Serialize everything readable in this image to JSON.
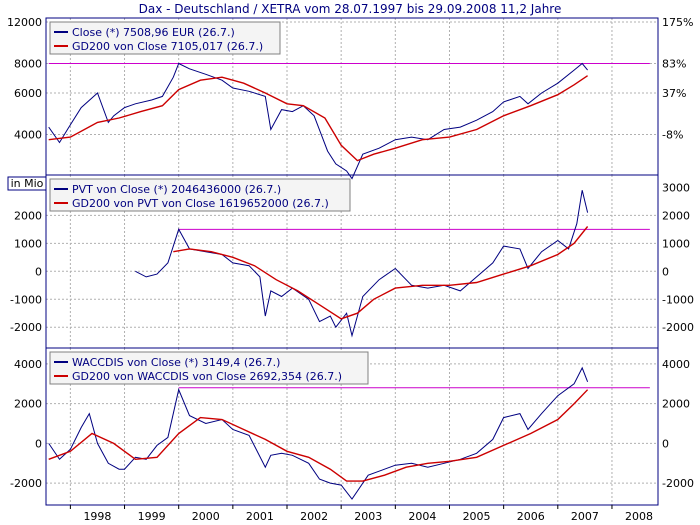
{
  "title": "Dax - Deutschland / XETRA vom 28.07.1997 bis 29.09.2008 11,2 Jahre",
  "colors": {
    "series": "#000080",
    "gd200": "#cc0000",
    "hline": "#cc00cc",
    "grid": "#b0b0b0",
    "frame": "#000080"
  },
  "x_axis": {
    "ticks": [
      "1998",
      "1999",
      "2000",
      "2001",
      "2002",
      "2003",
      "2004",
      "2005",
      "2006",
      "2007",
      "2008"
    ]
  },
  "chart_data": [
    {
      "type": "line",
      "ylim": [
        2800,
        12000
      ],
      "scale": "log",
      "left_ticks": [
        "12000",
        "8000",
        "6000",
        "4000"
      ],
      "left_tick_values": [
        12000,
        8000,
        6000,
        4000
      ],
      "right_ticks": [
        "175%",
        "83%",
        "37%",
        "-8%"
      ],
      "right_tick_values": [
        12000,
        8000,
        6000,
        4000
      ],
      "hline": 8000,
      "hline_start": 1997.6,
      "legend": [
        "Close (*) 7508,96 EUR (26.7.)",
        "GD200 von Close 7105,017 (26.7.)"
      ],
      "series": [
        {
          "name": "Close (*) 7508,96 EUR (26.7.)",
          "x": [
            1997.6,
            1997.8,
            1998.0,
            1998.2,
            1998.5,
            1998.7,
            1998.8,
            1999.0,
            1999.2,
            1999.5,
            1999.7,
            1999.9,
            2000.0,
            2000.2,
            2000.5,
            2000.8,
            2001.0,
            2001.3,
            2001.6,
            2001.7,
            2001.9,
            2002.1,
            2002.3,
            2002.5,
            2002.75,
            2002.9,
            2003.1,
            2003.2,
            2003.4,
            2003.7,
            2004.0,
            2004.3,
            2004.6,
            2004.9,
            2005.2,
            2005.5,
            2005.8,
            2006.0,
            2006.3,
            2006.45,
            2006.7,
            2007.0,
            2007.3,
            2007.45,
            2007.55
          ],
          "y": [
            4300,
            3700,
            4400,
            5200,
            6000,
            4500,
            4800,
            5200,
            5400,
            5600,
            5800,
            7000,
            8000,
            7600,
            7200,
            6800,
            6300,
            6100,
            5800,
            4200,
            5100,
            5000,
            5300,
            4800,
            3400,
            3000,
            2800,
            2600,
            3300,
            3500,
            3800,
            3900,
            3800,
            4200,
            4300,
            4600,
            5000,
            5500,
            5800,
            5400,
            6000,
            6600,
            7500,
            8000,
            7500
          ]
        },
        {
          "name": "GD200 von Close 7105,017 (26.7.)",
          "x": [
            1997.6,
            1998.0,
            1998.5,
            1998.9,
            1999.3,
            1999.7,
            2000.0,
            2000.4,
            2000.8,
            2001.2,
            2001.6,
            2002.0,
            2002.3,
            2002.7,
            2003.0,
            2003.3,
            2003.6,
            2004.0,
            2004.5,
            2005.0,
            2005.5,
            2006.0,
            2006.5,
            2007.0,
            2007.3,
            2007.55
          ],
          "y": [
            3800,
            3900,
            4500,
            4700,
            5000,
            5300,
            6200,
            6800,
            7000,
            6600,
            6000,
            5400,
            5300,
            4700,
            3600,
            3100,
            3300,
            3500,
            3800,
            3900,
            4200,
            4800,
            5300,
            5900,
            6500,
            7100
          ]
        }
      ]
    },
    {
      "type": "line",
      "ylim": [
        -2600,
        3300
      ],
      "unit_label": "in Mio",
      "left_ticks": [
        "2000",
        "1000",
        "0",
        "-1000",
        "-2000"
      ],
      "left_tick_values": [
        2000,
        1000,
        0,
        -1000,
        -2000
      ],
      "right_ticks": [
        "3000",
        "2000",
        "1000",
        "0",
        "-1000",
        "-2000"
      ],
      "right_tick_values": [
        3000,
        2000,
        1000,
        0,
        -1000,
        -2000
      ],
      "hline": 1500,
      "hline_start": 2000.0,
      "legend": [
        "PVT von Close (*) 2046436000 (26.7.)",
        "GD200 von PVT von Close 1619652000 (26.7.)"
      ],
      "series": [
        {
          "name": "PVT von Close (*) 2046436000 (26.7.)",
          "x": [
            1999.2,
            1999.4,
            1999.6,
            1999.8,
            2000.0,
            2000.2,
            2000.5,
            2000.8,
            2001.0,
            2001.3,
            2001.5,
            2001.6,
            2001.7,
            2001.9,
            2002.1,
            2002.4,
            2002.6,
            2002.8,
            2002.9,
            2003.1,
            2003.2,
            2003.4,
            2003.7,
            2004.0,
            2004.3,
            2004.6,
            2004.9,
            2005.2,
            2005.5,
            2005.8,
            2006.0,
            2006.3,
            2006.45,
            2006.7,
            2007.0,
            2007.2,
            2007.35,
            2007.45,
            2007.55
          ],
          "y": [
            0,
            -200,
            -100,
            300,
            1500,
            800,
            700,
            600,
            300,
            200,
            -200,
            -1600,
            -700,
            -900,
            -600,
            -1000,
            -1800,
            -1600,
            -2000,
            -1500,
            -2300,
            -900,
            -300,
            100,
            -500,
            -600,
            -500,
            -700,
            -200,
            300,
            900,
            800,
            100,
            700,
            1100,
            800,
            1700,
            2900,
            2100
          ]
        },
        {
          "name": "GD200 von PVT von Close 1619652000 (26.7.)",
          "x": [
            1999.9,
            2000.2,
            2000.6,
            2001.0,
            2001.4,
            2001.8,
            2002.2,
            2002.6,
            2003.0,
            2003.3,
            2003.6,
            2004.0,
            2004.5,
            2005.0,
            2005.5,
            2006.0,
            2006.5,
            2007.0,
            2007.3,
            2007.55
          ],
          "y": [
            700,
            800,
            700,
            500,
            200,
            -300,
            -700,
            -1200,
            -1700,
            -1500,
            -1000,
            -600,
            -500,
            -500,
            -400,
            -100,
            200,
            600,
            1000,
            1600
          ]
        }
      ]
    },
    {
      "type": "line",
      "ylim": [
        -2900,
        4600
      ],
      "left_ticks": [
        "4000",
        "2000",
        "0",
        "-2000"
      ],
      "left_tick_values": [
        4000,
        2000,
        0,
        -2000
      ],
      "right_ticks": [
        "4000",
        "2000",
        "0",
        "-2000"
      ],
      "right_tick_values": [
        4000,
        2000,
        0,
        -2000
      ],
      "hline": 2800,
      "hline_start": 2000.0,
      "legend": [
        "WACCDIS von Close (*) 3149,4 (26.7.)",
        "GD200 von WACCDIS von Close 2692,354 (26.7.)"
      ],
      "series": [
        {
          "name": "WACCDIS von Close (*) 3149,4 (26.7.)",
          "x": [
            1997.6,
            1997.8,
            1998.0,
            1998.2,
            1998.35,
            1998.5,
            1998.7,
            1998.9,
            1999.0,
            1999.2,
            1999.4,
            1999.6,
            1999.8,
            2000.0,
            2000.2,
            2000.5,
            2000.8,
            2001.0,
            2001.3,
            2001.6,
            2001.7,
            2001.9,
            2002.1,
            2002.4,
            2002.6,
            2002.8,
            2003.0,
            2003.2,
            2003.5,
            2003.8,
            2004.0,
            2004.3,
            2004.6,
            2004.9,
            2005.2,
            2005.5,
            2005.8,
            2006.0,
            2006.3,
            2006.45,
            2006.7,
            2007.0,
            2007.3,
            2007.45,
            2007.55
          ],
          "y": [
            0,
            -800,
            -300,
            800,
            1500,
            0,
            -1000,
            -1300,
            -1300,
            -700,
            -800,
            -100,
            300,
            2700,
            1400,
            1000,
            1200,
            700,
            400,
            -1200,
            -600,
            -500,
            -600,
            -1000,
            -1800,
            -2000,
            -2100,
            -2800,
            -1600,
            -1300,
            -1100,
            -1000,
            -1200,
            -1000,
            -800,
            -500,
            200,
            1300,
            1500,
            700,
            1500,
            2400,
            3000,
            3800,
            3100
          ]
        },
        {
          "name": "GD200 von WACCDIS von Close 2692,354 (26.7.)",
          "x": [
            1997.6,
            1998.0,
            1998.4,
            1998.8,
            1999.2,
            1999.6,
            2000.0,
            2000.4,
            2000.8,
            2001.2,
            2001.6,
            2002.0,
            2002.4,
            2002.8,
            2003.1,
            2003.4,
            2003.8,
            2004.2,
            2004.6,
            2005.0,
            2005.5,
            2006.0,
            2006.5,
            2007.0,
            2007.3,
            2007.55
          ],
          "y": [
            -800,
            -400,
            500,
            0,
            -800,
            -700,
            500,
            1300,
            1200,
            700,
            200,
            -400,
            -700,
            -1300,
            -1900,
            -1900,
            -1600,
            -1200,
            -1000,
            -900,
            -700,
            -100,
            500,
            1200,
            2000,
            2700
          ]
        }
      ]
    }
  ]
}
